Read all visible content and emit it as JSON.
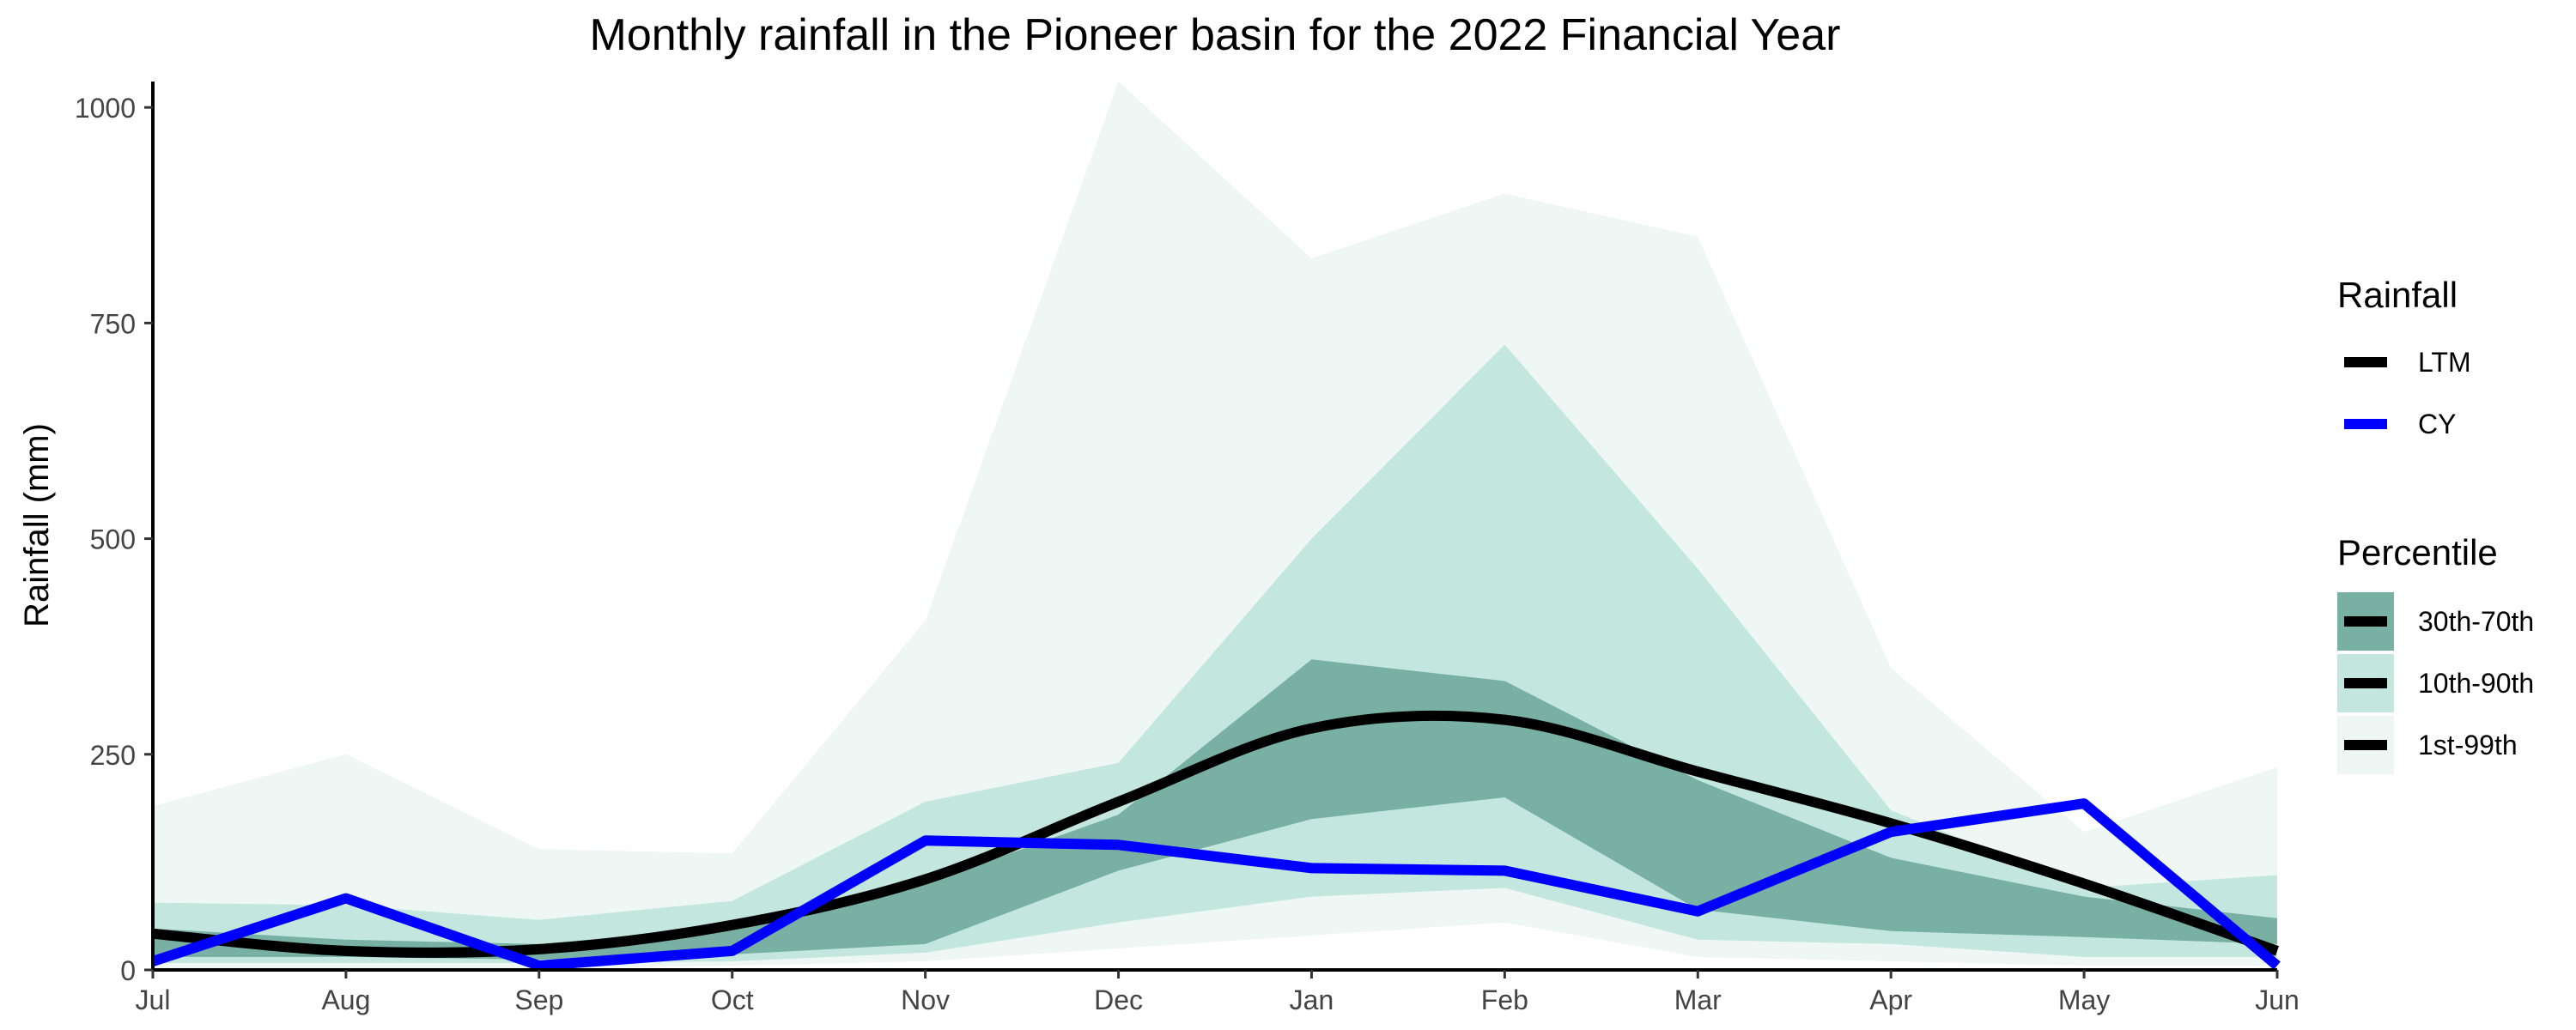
{
  "chart_data": {
    "type": "area",
    "title": "Monthly rainfall in the Pioneer basin for the 2022 Financial Year",
    "xlabel": "",
    "ylabel": "Rainfall (mm)",
    "categories": [
      "Jul",
      "Aug",
      "Sep",
      "Oct",
      "Nov",
      "Dec",
      "Jan",
      "Feb",
      "Mar",
      "Apr",
      "May",
      "Jun"
    ],
    "ylim": [
      0,
      1030
    ],
    "yticks": [
      0,
      250,
      500,
      750,
      1000
    ],
    "grid": false,
    "bands": [
      {
        "name": "1st-99th",
        "color": "#eef7f4",
        "lower": [
          2,
          2,
          2,
          5,
          10,
          25,
          40,
          55,
          15,
          10,
          5,
          5
        ],
        "upper": [
          190,
          250,
          140,
          135,
          405,
          1030,
          825,
          900,
          850,
          350,
          160,
          235
        ]
      },
      {
        "name": "10th-90th",
        "color": "#c3e7de",
        "lower": [
          8,
          8,
          8,
          10,
          20,
          55,
          85,
          95,
          35,
          30,
          15,
          15
        ],
        "upper": [
          78,
          75,
          58,
          80,
          195,
          240,
          500,
          725,
          465,
          185,
          95,
          110
        ]
      },
      {
        "name": "30th-70th",
        "color": "#78b0a4",
        "lower": [
          15,
          15,
          12,
          18,
          30,
          115,
          175,
          200,
          70,
          45,
          38,
          30
        ],
        "upper": [
          48,
          35,
          30,
          50,
          100,
          180,
          360,
          335,
          220,
          130,
          85,
          60
        ]
      }
    ],
    "series": [
      {
        "name": "LTM",
        "color": "#000000",
        "values": [
          42,
          22,
          24,
          52,
          105,
          195,
          280,
          290,
          230,
          170,
          100,
          22
        ]
      },
      {
        "name": "CY",
        "color": "#0000ff",
        "values": [
          10,
          83,
          5,
          22,
          150,
          145,
          118,
          115,
          68,
          160,
          193,
          5
        ]
      }
    ],
    "legend": {
      "placement": "right",
      "rainfall_title": "Rainfall",
      "percentile_title": "Percentile"
    }
  }
}
